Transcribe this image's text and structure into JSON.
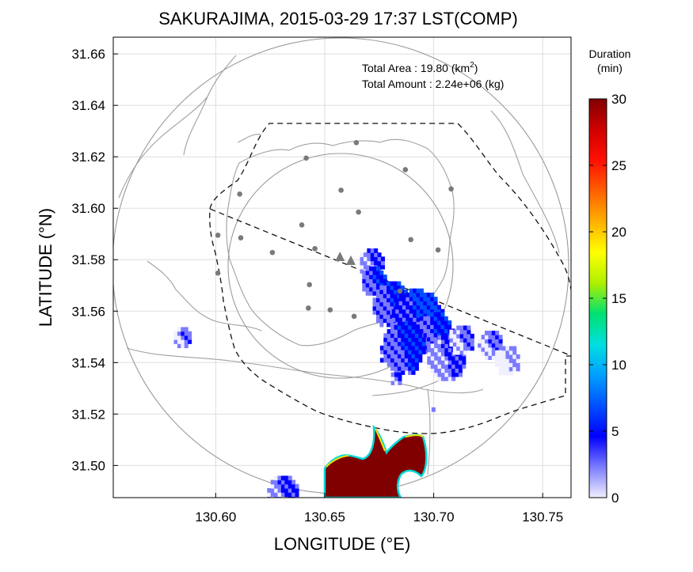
{
  "chart_data": {
    "type": "heatmap",
    "title": "SAKURAJIMA, 2015-03-29 17:37 LST(COMP)",
    "xlabel": "LONGITUDE (°E)",
    "ylabel": "LATITUDE (°N)",
    "xlim": [
      130.553,
      130.763
    ],
    "ylim": [
      31.4875,
      31.6665
    ],
    "x_ticks": [
      130.6,
      130.65,
      130.7,
      130.75
    ],
    "y_ticks": [
      31.5,
      31.52,
      31.54,
      31.56,
      31.58,
      31.6,
      31.62,
      31.64,
      31.66
    ],
    "x_tick_labels": [
      "130.60",
      "130.65",
      "130.70",
      "130.75"
    ],
    "y_tick_labels": [
      "31.50",
      "31.52",
      "31.54",
      "31.56",
      "31.58",
      "31.60",
      "31.62",
      "31.64",
      "31.66"
    ],
    "grid": true,
    "annotations": [
      {
        "label": "Total Area   : 19.80 (km",
        "sup": "2",
        "tail": ")"
      },
      {
        "label": "Total Amount : 2.24e+06 (kg)",
        "sup": "",
        "tail": ""
      }
    ],
    "colorbar": {
      "title_line1": "Duration",
      "title_line2": "(min)",
      "min": 0,
      "max": 30,
      "ticks": [
        0,
        5,
        10,
        15,
        20,
        25,
        30
      ],
      "tick_labels": [
        "0",
        "5",
        "10",
        "15",
        "20",
        "25",
        "30"
      ],
      "colors": [
        "#f0f0ff",
        "#7b7bff",
        "#0000ff",
        "#0050ff",
        "#00a0ff",
        "#00e0e0",
        "#00e070",
        "#b0f000",
        "#ffff00",
        "#ffb000",
        "#ff6000",
        "#ff1000",
        "#d00000",
        "#800000"
      ]
    },
    "vent": {
      "lon": 130.662,
      "lat": 31.5795
    },
    "vent2": {
      "lon": 130.657,
      "lat": 31.581
    },
    "radar_circles": [
      {
        "center_lon": 130.653,
        "center_lat": 31.577,
        "radius_km": 10
      },
      {
        "center_lon": 130.653,
        "center_lat": 31.577,
        "radius_km": 20
      }
    ],
    "stations": [
      [
        130.6645,
        31.6255
      ],
      [
        130.6415,
        31.6195
      ],
      [
        130.687,
        31.615
      ],
      [
        130.708,
        31.6075
      ],
      [
        130.611,
        31.6055
      ],
      [
        130.6575,
        31.607
      ],
      [
        130.6655,
        31.5985
      ],
      [
        130.601,
        31.5895
      ],
      [
        130.6115,
        31.5885
      ],
      [
        130.6395,
        31.5935
      ],
      [
        130.6895,
        31.5878
      ],
      [
        130.626,
        31.5828
      ],
      [
        130.6455,
        31.5843
      ],
      [
        130.702,
        31.5838
      ],
      [
        130.601,
        31.5748
      ],
      [
        130.643,
        31.5703
      ],
      [
        130.6845,
        31.5678
      ],
      [
        130.6425,
        31.5612
      ],
      [
        130.6525,
        31.5605
      ],
      [
        130.6635,
        31.558
      ]
    ],
    "ash_cells": [
      {
        "lon": 130.671,
        "lat": 31.578,
        "r": 0.006,
        "v": 4
      },
      {
        "lon": 130.672,
        "lat": 31.571,
        "r": 0.007,
        "v": 5
      },
      {
        "lon": 130.68,
        "lat": 31.562,
        "r": 0.01,
        "v": 5
      },
      {
        "lon": 130.692,
        "lat": 31.556,
        "r": 0.012,
        "v": 6
      },
      {
        "lon": 130.7,
        "lat": 31.55,
        "r": 0.01,
        "v": 5
      },
      {
        "lon": 130.685,
        "lat": 31.545,
        "r": 0.011,
        "v": 5
      },
      {
        "lon": 130.705,
        "lat": 31.541,
        "r": 0.009,
        "v": 4
      },
      {
        "lon": 130.712,
        "lat": 31.548,
        "r": 0.006,
        "v": 3
      },
      {
        "lon": 130.725,
        "lat": 31.546,
        "r": 0.006,
        "v": 3
      },
      {
        "lon": 130.733,
        "lat": 31.54,
        "r": 0.006,
        "v": 2
      },
      {
        "lon": 130.584,
        "lat": 31.549,
        "r": 0.005,
        "v": 3
      },
      {
        "lon": 130.699,
        "lat": 31.521,
        "r": 0.0015,
        "v": 3
      },
      {
        "lon": 130.682,
        "lat": 31.533,
        "r": 0.0025,
        "v": 4
      },
      {
        "lon": 130.63,
        "lat": 31.488,
        "r": 0.008,
        "v": 4
      }
    ],
    "plume_level": 30
  }
}
